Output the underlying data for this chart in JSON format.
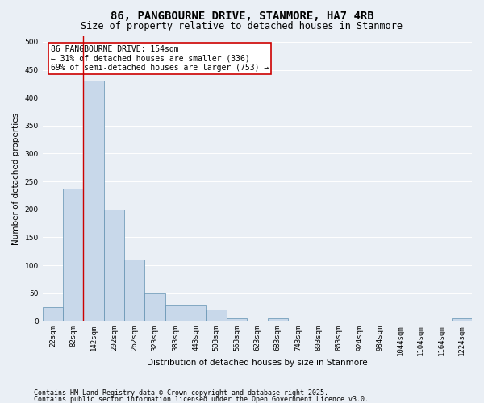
{
  "title1": "86, PANGBOURNE DRIVE, STANMORE, HA7 4RB",
  "title2": "Size of property relative to detached houses in Stanmore",
  "xlabel": "Distribution of detached houses by size in Stanmore",
  "ylabel": "Number of detached properties",
  "categories": [
    "22sqm",
    "82sqm",
    "142sqm",
    "202sqm",
    "262sqm",
    "323sqm",
    "383sqm",
    "443sqm",
    "503sqm",
    "563sqm",
    "623sqm",
    "683sqm",
    "743sqm",
    "803sqm",
    "863sqm",
    "924sqm",
    "984sqm",
    "1044sqm",
    "1104sqm",
    "1164sqm",
    "1224sqm"
  ],
  "values": [
    25,
    237,
    430,
    200,
    110,
    50,
    28,
    28,
    20,
    5,
    0,
    5,
    0,
    0,
    0,
    0,
    0,
    0,
    0,
    0,
    5
  ],
  "bar_color": "#c8d8ea",
  "bar_edge_color": "#6090b0",
  "vline_color": "#cc0000",
  "vline_idx": 2,
  "annotation_text": "86 PANGBOURNE DRIVE: 154sqm\n← 31% of detached houses are smaller (336)\n69% of semi-detached houses are larger (753) →",
  "annotation_box_color": "#ffffff",
  "annotation_box_edge": "#cc0000",
  "ylim": [
    0,
    510
  ],
  "yticks": [
    0,
    50,
    100,
    150,
    200,
    250,
    300,
    350,
    400,
    450,
    500
  ],
  "background_color": "#eaeff5",
  "grid_color": "#ffffff",
  "footer1": "Contains HM Land Registry data © Crown copyright and database right 2025.",
  "footer2": "Contains public sector information licensed under the Open Government Licence v3.0.",
  "title_fontsize": 10,
  "subtitle_fontsize": 8.5,
  "axis_label_fontsize": 7.5,
  "tick_fontsize": 6.5,
  "annotation_fontsize": 7,
  "footer_fontsize": 6
}
